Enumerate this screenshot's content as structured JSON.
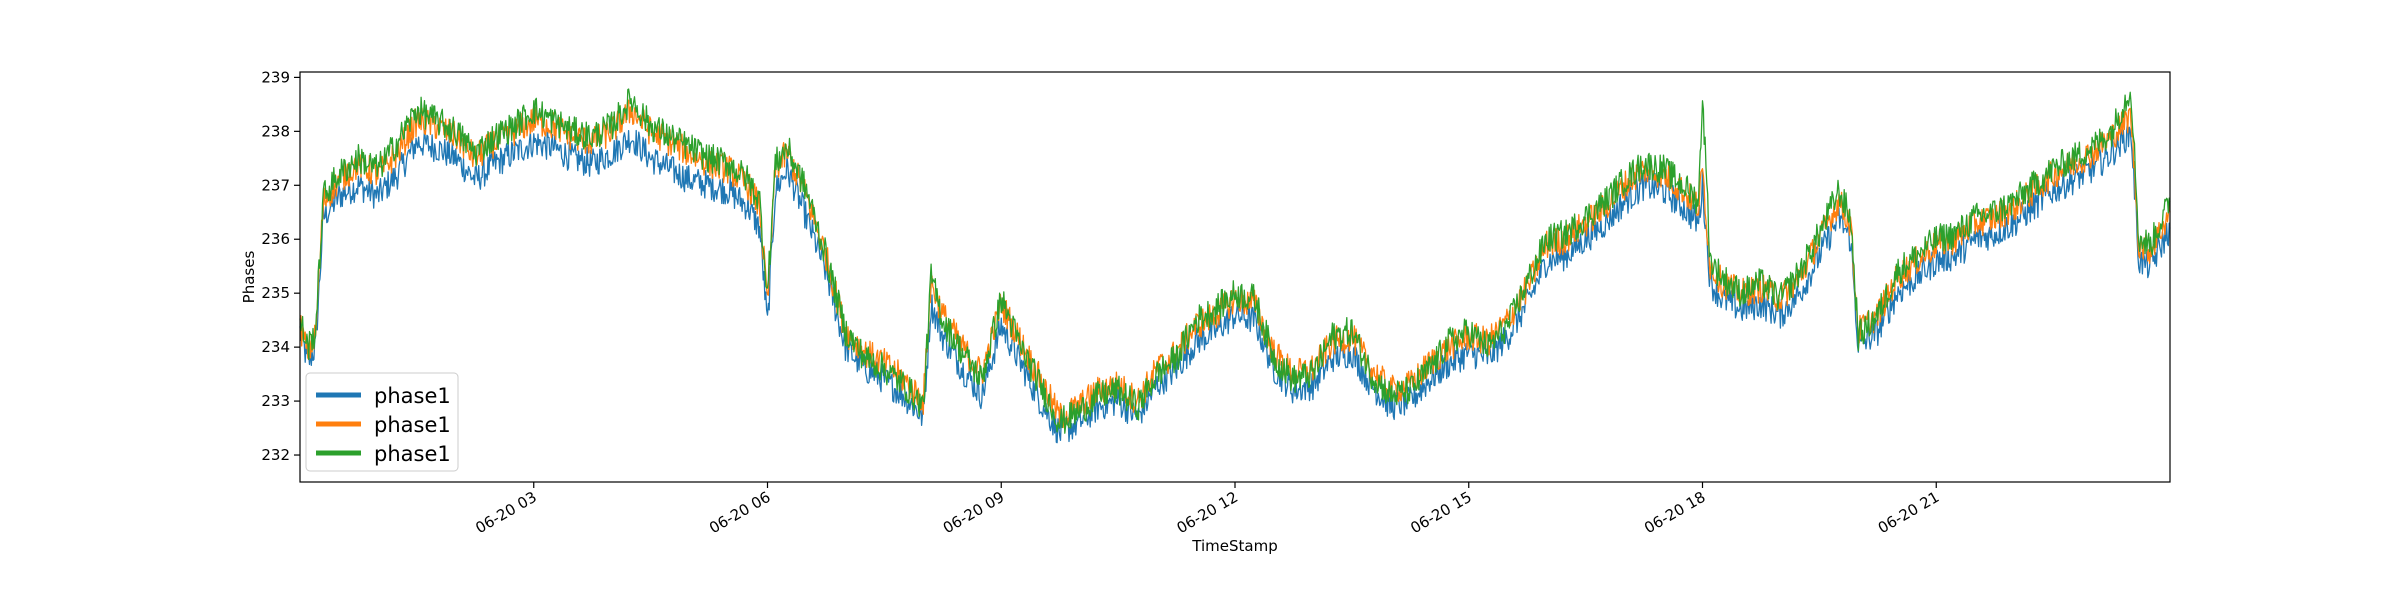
{
  "chart_data": {
    "type": "line",
    "xlabel": "TimeStamp",
    "ylabel": "Phases",
    "x_start": "06-20 00:00",
    "x_end": "06-20 23:59",
    "xlim_hours": [
      0,
      24
    ],
    "ylim": [
      231.5,
      239.1
    ],
    "x_ticks": [
      {
        "hour": 3,
        "label": "06-20 03"
      },
      {
        "hour": 6,
        "label": "06-20 06"
      },
      {
        "hour": 9,
        "label": "06-20 09"
      },
      {
        "hour": 12,
        "label": "06-20 12"
      },
      {
        "hour": 15,
        "label": "06-20 15"
      },
      {
        "hour": 18,
        "label": "06-20 18"
      },
      {
        "hour": 21,
        "label": "06-20 21"
      }
    ],
    "y_ticks": [
      232,
      233,
      234,
      235,
      236,
      237,
      238,
      239
    ],
    "grid": false,
    "legend_position": "lower-left",
    "x_hours": [
      0.0,
      0.1,
      0.2,
      0.3,
      0.5,
      0.75,
      1.0,
      1.25,
      1.5,
      1.75,
      2.0,
      2.25,
      2.5,
      2.75,
      3.0,
      3.25,
      3.5,
      3.75,
      4.0,
      4.25,
      4.5,
      4.75,
      5.0,
      5.25,
      5.5,
      5.75,
      5.9,
      6.0,
      6.1,
      6.25,
      6.5,
      6.75,
      7.0,
      7.25,
      7.5,
      7.75,
      8.0,
      8.1,
      8.25,
      8.5,
      8.75,
      9.0,
      9.25,
      9.5,
      9.75,
      10.0,
      10.25,
      10.5,
      10.75,
      11.0,
      11.25,
      11.5,
      11.75,
      12.0,
      12.25,
      12.5,
      12.75,
      13.0,
      13.25,
      13.5,
      13.75,
      14.0,
      14.25,
      14.5,
      14.75,
      15.0,
      15.25,
      15.5,
      15.75,
      16.0,
      16.25,
      16.5,
      16.75,
      17.0,
      17.25,
      17.5,
      17.75,
      17.95,
      18.0,
      18.1,
      18.25,
      18.5,
      18.75,
      19.0,
      19.25,
      19.5,
      19.75,
      19.9,
      20.0,
      20.25,
      20.5,
      20.75,
      21.0,
      21.25,
      21.5,
      21.75,
      22.0,
      22.25,
      22.5,
      22.75,
      23.0,
      23.25,
      23.5,
      23.6,
      23.75,
      24.0
    ],
    "series": [
      {
        "name": "phase1",
        "color": "#1f77b4",
        "values": [
          234.3,
          233.7,
          234.0,
          236.4,
          236.8,
          237.0,
          236.8,
          237.2,
          237.8,
          237.7,
          237.5,
          237.1,
          237.4,
          237.6,
          237.8,
          237.7,
          237.5,
          237.4,
          237.6,
          237.9,
          237.5,
          237.3,
          237.1,
          237.0,
          236.9,
          236.6,
          236.2,
          234.4,
          236.9,
          237.3,
          236.4,
          235.4,
          234.0,
          233.6,
          233.4,
          233.1,
          232.7,
          234.8,
          234.2,
          233.6,
          233.1,
          234.4,
          233.7,
          233.0,
          232.4,
          232.6,
          232.9,
          233.0,
          232.7,
          233.3,
          233.6,
          234.1,
          234.3,
          234.6,
          234.5,
          233.6,
          233.2,
          233.3,
          233.8,
          233.9,
          233.3,
          232.9,
          233.0,
          233.4,
          233.7,
          233.9,
          233.8,
          234.2,
          234.8,
          235.6,
          235.7,
          236.0,
          236.3,
          236.7,
          237.0,
          236.9,
          236.6,
          236.3,
          237.0,
          235.2,
          234.9,
          234.7,
          234.8,
          234.6,
          235.0,
          235.7,
          236.4,
          236.0,
          234.0,
          234.3,
          235.0,
          235.3,
          235.6,
          235.7,
          236.0,
          236.1,
          236.3,
          236.6,
          236.9,
          237.1,
          237.3,
          237.6,
          238.0,
          235.6,
          235.5,
          236.2
        ]
      },
      {
        "name": "phase1",
        "color": "#ff7f0e",
        "values": [
          234.4,
          233.9,
          234.2,
          236.7,
          237.1,
          237.4,
          237.2,
          237.6,
          238.2,
          238.1,
          237.9,
          237.5,
          237.8,
          238.0,
          238.2,
          238.1,
          237.9,
          237.8,
          238.0,
          238.4,
          238.0,
          237.8,
          237.6,
          237.4,
          237.3,
          237.0,
          236.6,
          234.8,
          237.3,
          237.6,
          236.8,
          235.7,
          234.3,
          233.9,
          233.7,
          233.4,
          233.0,
          235.2,
          234.6,
          234.0,
          233.5,
          234.8,
          234.1,
          233.4,
          232.7,
          232.9,
          233.2,
          233.3,
          233.0,
          233.6,
          233.9,
          234.4,
          234.6,
          234.9,
          234.8,
          233.9,
          233.5,
          233.6,
          234.1,
          234.2,
          233.6,
          233.2,
          233.3,
          233.7,
          234.0,
          234.2,
          234.1,
          234.5,
          235.1,
          235.9,
          236.0,
          236.3,
          236.6,
          237.0,
          237.3,
          237.2,
          236.9,
          236.6,
          237.3,
          235.5,
          235.2,
          235.0,
          235.1,
          234.9,
          235.3,
          236.0,
          236.7,
          236.3,
          234.3,
          234.6,
          235.3,
          235.6,
          235.9,
          236.0,
          236.3,
          236.4,
          236.6,
          236.9,
          237.2,
          237.4,
          237.6,
          237.9,
          238.3,
          235.9,
          235.8,
          236.5
        ]
      },
      {
        "name": "phase1",
        "color": "#2ca02c",
        "values": [
          234.5,
          234.0,
          234.3,
          236.8,
          237.2,
          237.5,
          237.3,
          237.8,
          238.4,
          238.2,
          238.0,
          237.6,
          237.9,
          238.1,
          238.4,
          238.2,
          238.0,
          237.9,
          238.1,
          238.6,
          238.1,
          237.9,
          237.7,
          237.5,
          237.4,
          237.1,
          236.7,
          235.0,
          237.4,
          237.7,
          236.9,
          235.7,
          234.3,
          233.8,
          233.6,
          233.3,
          232.9,
          235.3,
          234.5,
          233.9,
          233.4,
          234.9,
          234.0,
          233.3,
          232.6,
          232.8,
          233.1,
          233.2,
          232.9,
          233.5,
          233.8,
          234.5,
          234.7,
          235.0,
          234.9,
          233.8,
          233.4,
          233.5,
          234.2,
          234.3,
          233.5,
          233.1,
          233.2,
          233.6,
          234.1,
          234.3,
          234.0,
          234.4,
          235.2,
          236.0,
          236.1,
          236.4,
          236.7,
          237.1,
          237.4,
          237.3,
          237.0,
          236.7,
          238.7,
          235.6,
          235.3,
          235.0,
          235.2,
          234.9,
          235.4,
          236.1,
          236.9,
          236.4,
          234.2,
          234.6,
          235.4,
          235.7,
          236.0,
          236.1,
          236.4,
          236.5,
          236.7,
          237.0,
          237.3,
          237.5,
          237.7,
          238.0,
          238.8,
          236.0,
          235.9,
          236.7
        ]
      }
    ]
  }
}
